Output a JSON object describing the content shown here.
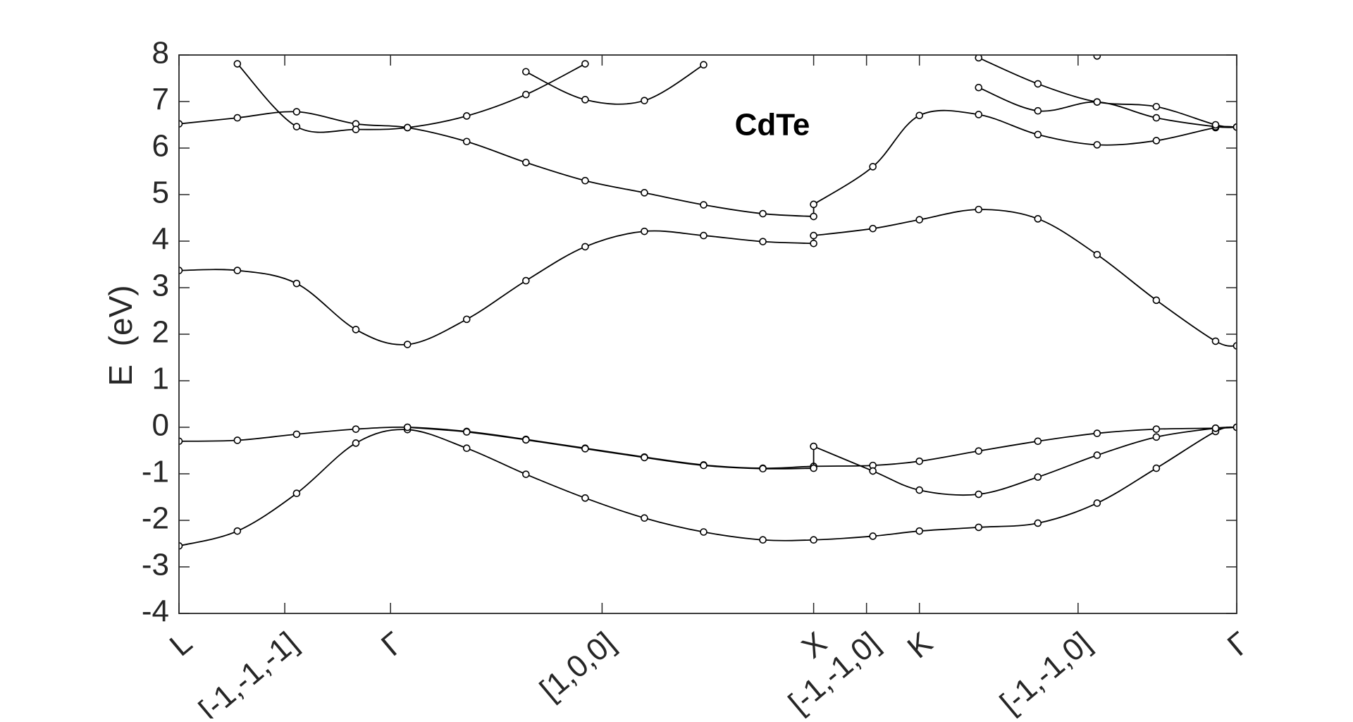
{
  "chart_data": {
    "type": "line",
    "title": "CdTe",
    "ylabel": "E  (eV)",
    "xlim": [
      0,
      2.5
    ],
    "ylim": [
      -4,
      8
    ],
    "yticks": [
      -4,
      -3,
      -2,
      -1,
      0,
      1,
      2,
      3,
      4,
      5,
      6,
      7,
      8
    ],
    "xticks": [
      {
        "value": 0,
        "label": "L"
      },
      {
        "value": 0.25,
        "label": "[-1,-1,-1]"
      },
      {
        "value": 0.5,
        "label": "Γ"
      },
      {
        "value": 1.0,
        "label": "[1,0,0]"
      },
      {
        "value": 1.5,
        "label": "X"
      },
      {
        "value": 1.625,
        "label": "[-1,-1,0]"
      },
      {
        "value": 1.75,
        "label": "K"
      },
      {
        "value": 2.125,
        "label": "[-1,-1,0]"
      },
      {
        "value": 2.5,
        "label": "Γ"
      }
    ],
    "grid": false,
    "series": [
      {
        "color": "#000000",
        "x": [
          0,
          0.138,
          0.278,
          0.418,
          0.54,
          0.68,
          0.82,
          0.96,
          1.1,
          1.24,
          1.38,
          1.5,
          1.64,
          1.75,
          1.89,
          2.03,
          2.17,
          2.31,
          2.45,
          2.5
        ],
        "values": [
          -2.55,
          -2.23,
          -1.42,
          -0.34,
          -0.05,
          -0.45,
          -1.01,
          -1.52,
          -1.95,
          -2.25,
          -2.42,
          -2.42,
          -2.34,
          -2.23,
          -2.15,
          -2.06,
          -1.63,
          -0.88,
          -0.09,
          0
        ]
      },
      {
        "color": "#000000",
        "x": [
          0,
          0.138,
          0.278,
          0.418,
          0.54,
          0.68,
          0.82,
          0.96,
          1.1,
          1.24,
          1.38,
          1.5,
          1.64,
          1.75,
          1.89,
          2.03,
          2.17,
          2.31,
          2.45,
          2.5
        ],
        "values": [
          -0.3,
          -0.28,
          -0.15,
          -0.04,
          0,
          -0.09,
          -0.26,
          -0.45,
          -0.64,
          -0.81,
          -0.88,
          -0.84,
          -0.82,
          -0.73,
          -0.51,
          -0.3,
          -0.13,
          -0.04,
          -0.02,
          0
        ]
      },
      {
        "color": "#000000",
        "x": [
          0.54,
          0.68,
          0.82,
          0.96,
          1.1,
          1.24,
          1.38,
          1.5,
          1.5,
          1.64,
          1.75,
          1.89,
          2.03,
          2.17,
          2.31,
          2.45,
          2.5
        ],
        "values": [
          0,
          -0.1,
          -0.27,
          -0.46,
          -0.65,
          -0.82,
          -0.89,
          -0.88,
          -0.41,
          -0.94,
          -1.35,
          -1.44,
          -1.07,
          -0.6,
          -0.21,
          -0.02,
          0
        ]
      },
      {
        "color": "#000000",
        "x": [
          0,
          0.138,
          0.278,
          0.418,
          0.54,
          0.68,
          0.82,
          0.96,
          1.1,
          1.24,
          1.38,
          1.5,
          1.5,
          1.64,
          1.75,
          1.89,
          2.03,
          2.17,
          2.31,
          2.45,
          2.5
        ],
        "values": [
          3.37,
          3.37,
          3.09,
          2.1,
          1.78,
          2.32,
          3.15,
          3.88,
          4.21,
          4.12,
          3.99,
          3.95,
          4.12,
          4.27,
          4.46,
          4.68,
          4.48,
          3.71,
          2.73,
          1.85,
          1.75
        ]
      },
      {
        "color": "#000000",
        "x": [
          0,
          0.138,
          0.278,
          0.418,
          0.54,
          0.68,
          0.82,
          0.96,
          1.1,
          1.24,
          1.38,
          1.5,
          1.5,
          1.64,
          1.75,
          1.89,
          2.03,
          2.17,
          2.31,
          2.45,
          2.5
        ],
        "values": [
          6.52,
          6.65,
          6.78,
          6.52,
          6.44,
          6.14,
          5.69,
          5.3,
          5.04,
          4.78,
          4.59,
          4.53,
          4.79,
          5.6,
          6.7,
          6.72,
          6.29,
          6.07,
          6.16,
          6.44,
          6.45
        ]
      },
      {
        "color": "#000000",
        "x": [
          0.138,
          0.278,
          0.418,
          0.54,
          0.68,
          0.82,
          0.96
        ],
        "values": [
          7.81,
          6.46,
          6.4,
          6.44,
          6.69,
          7.15,
          7.81
        ]
      },
      {
        "color": "#000000",
        "x": [
          0.82,
          0.96,
          1.1,
          1.24
        ],
        "values": [
          7.64,
          7.04,
          7.02,
          7.79
        ]
      },
      {
        "color": "#000000",
        "x": [
          1.89,
          2.03,
          2.17,
          2.31,
          2.45,
          2.5
        ],
        "values": [
          7.3,
          6.8,
          6.99,
          6.65,
          6.46,
          6.45
        ]
      },
      {
        "color": "#000000",
        "x": [
          1.89,
          2.03,
          2.17,
          2.31,
          2.45,
          2.5
        ],
        "values": [
          7.94,
          7.38,
          6.99,
          6.89,
          6.5,
          6.45
        ]
      },
      {
        "color": "#000000",
        "x": [
          2.17
        ],
        "values": [
          7.98
        ]
      }
    ]
  }
}
